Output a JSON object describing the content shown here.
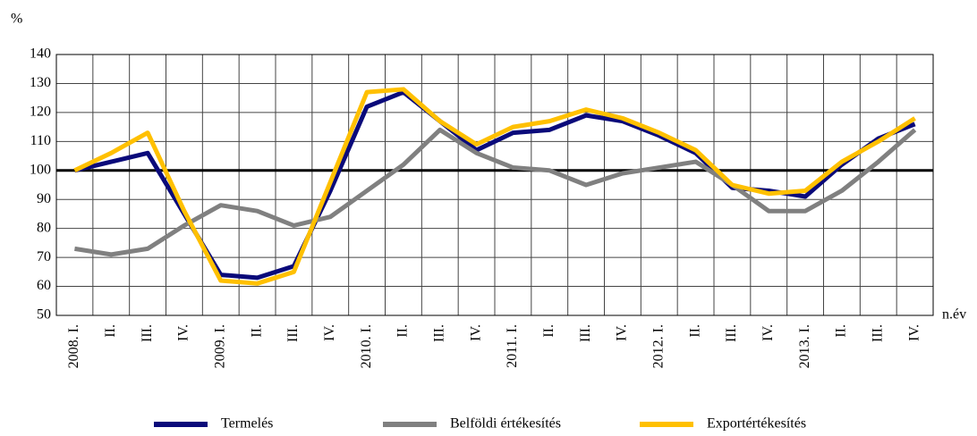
{
  "chart_data": {
    "type": "line",
    "y_label": "%",
    "x_label": "n.év",
    "categories": [
      "2008. I.",
      "II.",
      "III.",
      "IV.",
      "2009. I.",
      "II.",
      "III.",
      "IV.",
      "2010. I.",
      "II.",
      "III.",
      "IV.",
      "2011. I.",
      "II.",
      "III.",
      "IV.",
      "2012. I.",
      "II.",
      "III.",
      "IV.",
      "2013. I.",
      "II.",
      "III.",
      "IV."
    ],
    "series": [
      {
        "name": "Termelés",
        "color": "#0a0a7a",
        "values": [
          100,
          103,
          106,
          85,
          64,
          63,
          67,
          93,
          122,
          127,
          117,
          107,
          113,
          114,
          119,
          117,
          112,
          106,
          94,
          93,
          91,
          102,
          111,
          116
        ]
      },
      {
        "name": "Belföldi értékesítés",
        "color": "#808080",
        "values": [
          73,
          71,
          73,
          81,
          88,
          86,
          81,
          84,
          93,
          102,
          114,
          106,
          101,
          100,
          95,
          99,
          101,
          103,
          95,
          86,
          86,
          93,
          103,
          114
        ]
      },
      {
        "name": "Exportértékesítés",
        "color": "#ffc000",
        "values": [
          100,
          106,
          113,
          86,
          62,
          61,
          65,
          96,
          127,
          128,
          117,
          109,
          115,
          117,
          121,
          118,
          113,
          107,
          95,
          92,
          93,
          103,
          110,
          118
        ]
      }
    ],
    "reference_line": 100,
    "ylim": [
      50,
      140
    ],
    "yticks": [
      50,
      60,
      70,
      80,
      90,
      100,
      110,
      120,
      130,
      140
    ],
    "grid": true,
    "legend": "bottom"
  }
}
